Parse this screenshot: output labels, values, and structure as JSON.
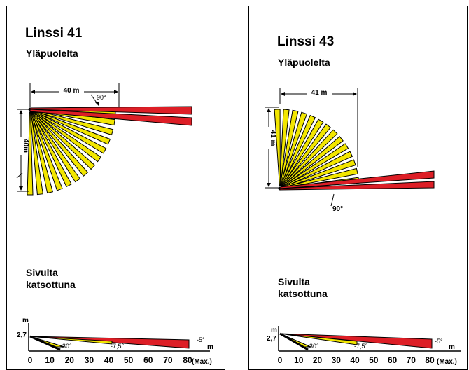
{
  "panels": [
    {
      "title": "Linssi 41",
      "top_view_label": "Yläpuolelta",
      "side_view_label_line1": "Sivulta",
      "side_view_label_line2": "katsottuna",
      "width_dim": "40 m",
      "depth_dim": "40m",
      "angle_label": "90°",
      "side_chart": {
        "y_axis_label": "m",
        "mount_height": "2,7",
        "angles": [
          "-30°",
          "-7,5°",
          "-5°"
        ],
        "x_ticks": [
          "0",
          "10",
          "20",
          "30",
          "40",
          "50",
          "60",
          "70",
          "80"
        ],
        "x_unit": "m",
        "max_label": "(Max.)"
      }
    },
    {
      "title": "Linssi 43",
      "top_view_label": "Yläpuolelta",
      "side_view_label_line1": "Sivulta",
      "side_view_label_line2": "katsottuna",
      "width_dim": "41 m",
      "depth_dim": "41 m",
      "angle_label": "90°",
      "side_chart": {
        "y_axis_label": "m",
        "mount_height": "2,7",
        "angles": [
          "-30°",
          "-7,5°",
          "-5°"
        ],
        "x_ticks": [
          "0",
          "10",
          "20",
          "30",
          "40",
          "50",
          "60",
          "70",
          "80"
        ],
        "x_unit": "m",
        "max_label": "(Max.)"
      }
    }
  ],
  "colors": {
    "yellow_zone": "#f2e600",
    "red_zone": "#dd1e26",
    "outline": "#000000"
  }
}
